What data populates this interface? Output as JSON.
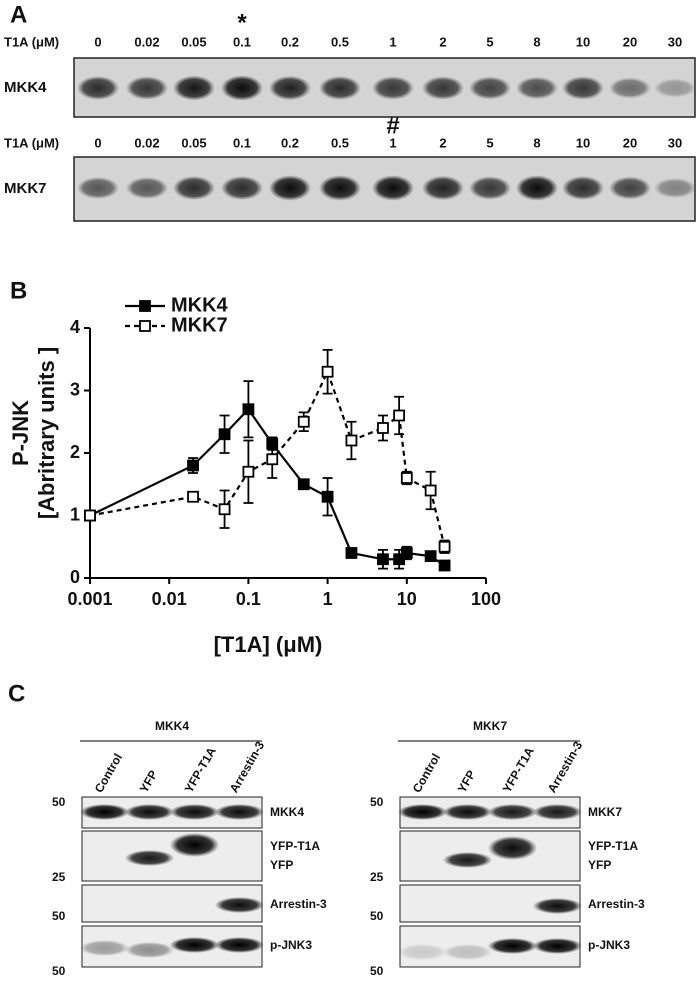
{
  "panel_a": {
    "label": "A",
    "rows": [
      {
        "axis_label": "T1A (μM)",
        "doses": [
          "0",
          "0.02",
          "0.05",
          "0.1",
          "0.2",
          "0.5",
          "1",
          "2",
          "5",
          "8",
          "10",
          "20",
          "30"
        ],
        "marker": "*",
        "protein": "MKK4"
      },
      {
        "axis_label": "T1A (μM)",
        "doses": [
          "0",
          "0.02",
          "0.05",
          "0.1",
          "0.2",
          "0.5",
          "1",
          "2",
          "5",
          "8",
          "10",
          "20",
          "30"
        ],
        "marker": "#",
        "protein": "MKK7"
      }
    ]
  },
  "panel_b": {
    "label": "B"
  },
  "chart_data": {
    "type": "line",
    "ylabel": [
      "P-JNK",
      "[Abritrary units ]"
    ],
    "xlabel": "[T1A] (μM)",
    "x": [
      0.001,
      0.02,
      0.05,
      0.1,
      0.2,
      0.5,
      1,
      2,
      5,
      8,
      10,
      20,
      30
    ],
    "xscale": "log",
    "xlim": [
      0.001,
      100
    ],
    "xticks": [
      0.001,
      0.01,
      0.1,
      1,
      10,
      100
    ],
    "ylim": [
      0,
      4
    ],
    "yticks": [
      0,
      1,
      2,
      3,
      4
    ],
    "legend": "top left",
    "series": [
      {
        "name": "MKK4",
        "color": "#000000",
        "line_style": "solid",
        "marker_fill": "filled",
        "values": [
          1.0,
          1.8,
          2.3,
          2.7,
          2.15,
          1.5,
          1.3,
          0.4,
          0.3,
          0.3,
          0.4,
          0.35,
          0.2
        ],
        "errors": [
          0,
          0.12,
          0.3,
          0.45,
          0.1,
          0.05,
          0.3,
          0.05,
          0.15,
          0.15,
          0.1,
          0.05,
          0.05
        ]
      },
      {
        "name": "MKK7",
        "color": "#000000",
        "line_style": "dashed",
        "marker_fill": "open",
        "values": [
          1.0,
          1.3,
          1.1,
          1.7,
          1.9,
          2.5,
          3.3,
          2.2,
          2.4,
          2.6,
          1.6,
          1.4,
          0.5
        ],
        "errors": [
          0,
          0.05,
          0.3,
          0.5,
          0.3,
          0.15,
          0.35,
          0.3,
          0.2,
          0.3,
          0.1,
          0.3,
          0.1
        ]
      }
    ]
  },
  "panel_c": {
    "label": "C",
    "groups": [
      {
        "title": "MKK4",
        "lanes": [
          "Control",
          "YFP",
          "YFP-T1A",
          "Arrestin-3"
        ],
        "proteins": [
          "MKK4",
          "YFP-T1A",
          "YFP",
          "Arrestin-3",
          "p-JNK3"
        ],
        "markers": [
          "50",
          "25",
          "50",
          "50"
        ]
      },
      {
        "title": "MKK7",
        "lanes": [
          "Control",
          "YFP",
          "YFP-T1A",
          "Arrestin-3"
        ],
        "proteins": [
          "MKK7",
          "YFP-T1A",
          "YFP",
          "Arrestin-3",
          "p-JNK3"
        ],
        "markers": [
          "50",
          "25",
          "50",
          "50"
        ]
      }
    ]
  }
}
